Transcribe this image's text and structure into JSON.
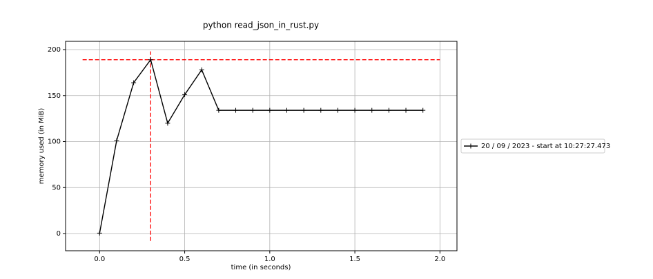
{
  "chart_data": {
    "type": "line",
    "title": "python read_json_in_rust.py",
    "xlabel": "time (in seconds)",
    "ylabel": "memory used (in MiB)",
    "x": [
      0.0,
      0.1,
      0.2,
      0.3,
      0.4,
      0.5,
      0.6,
      0.7,
      0.8,
      0.9,
      1.0,
      1.1,
      1.2,
      1.3,
      1.4,
      1.5,
      1.6,
      1.7,
      1.8,
      1.9
    ],
    "series": [
      {
        "name": "20 / 09 / 2023 - start at 10:27:27.473",
        "color": "#000000",
        "values": [
          0.5,
          101,
          164,
          189,
          120,
          151,
          178,
          134,
          134,
          134,
          134,
          134,
          134,
          134,
          134,
          134,
          134,
          134,
          134,
          134
        ]
      }
    ],
    "max_hline": {
      "y": 189,
      "x_range": [
        -0.1,
        2.0
      ],
      "color": "#ff0000"
    },
    "max_vline": {
      "x": 0.3,
      "y_range": [
        -8,
        198
      ],
      "color": "#ff0000"
    },
    "xlim": [
      -0.2,
      2.1
    ],
    "ylim": [
      -18.7,
      209
    ],
    "xticks": [
      {
        "value": 0,
        "label": "0.0"
      },
      0.5,
      {
        "value": 1,
        "label": "1.0"
      },
      1.5,
      {
        "value": 2,
        "label": "2.0"
      }
    ],
    "yticks": [
      0,
      50,
      100,
      150,
      200
    ],
    "grid": true,
    "legend": "outside right"
  }
}
